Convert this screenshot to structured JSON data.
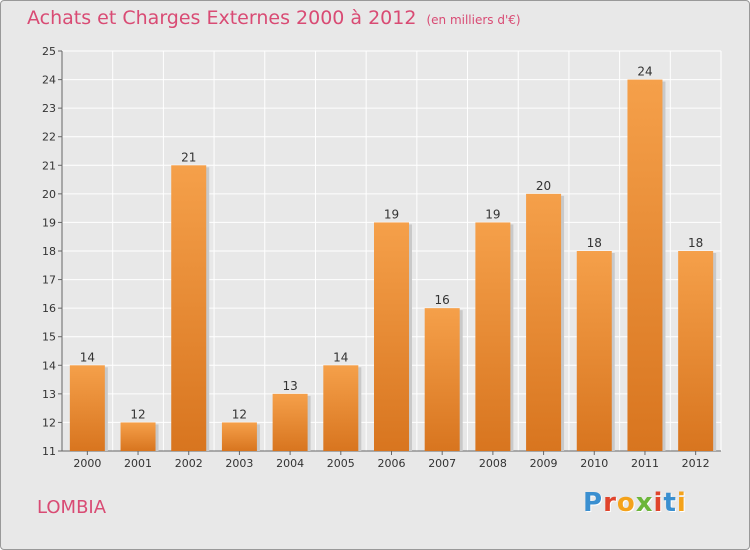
{
  "title": "Achats et Charges Externes 2000 à 2012",
  "unit": "(en milliers d'€)",
  "commune": "LOMBIA",
  "logo": "Proxiti",
  "colors": {
    "title": "#d94b74",
    "bar_light": "#f5a04a",
    "bar_dark": "#d8751f",
    "background": "#e8e8e8"
  },
  "chart_data": {
    "type": "bar",
    "categories": [
      "2000",
      "2001",
      "2002",
      "2003",
      "2004",
      "2005",
      "2006",
      "2007",
      "2008",
      "2009",
      "2010",
      "2011",
      "2012"
    ],
    "values": [
      14,
      12,
      21,
      12,
      13,
      14,
      19,
      16,
      19,
      20,
      18,
      24,
      18
    ],
    "ylim": [
      11,
      25
    ],
    "yticks": [
      11,
      12,
      13,
      14,
      15,
      16,
      17,
      18,
      19,
      20,
      21,
      22,
      23,
      24,
      25
    ],
    "grid": true
  }
}
